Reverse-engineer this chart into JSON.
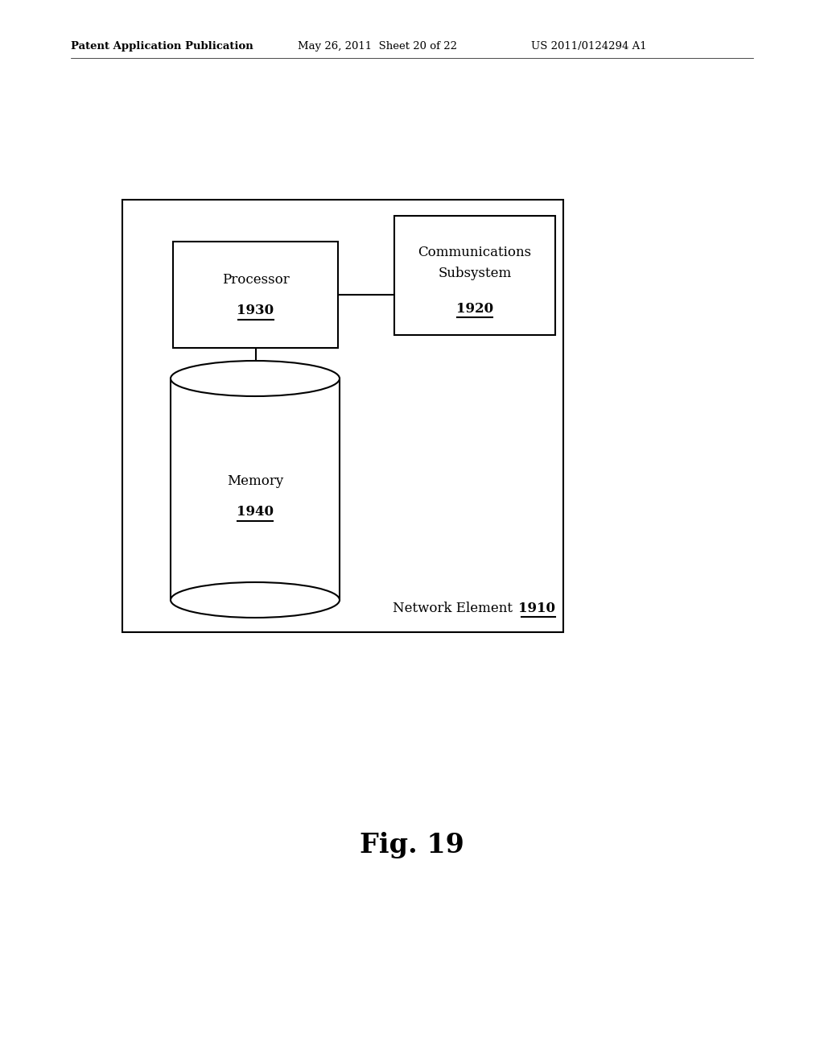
{
  "bg_color": "#ffffff",
  "header_text": "Patent Application Publication",
  "header_date": "May 26, 2011  Sheet 20 of 22",
  "header_patent": "US 2011/0124294 A1",
  "fig_caption": "Fig. 19",
  "text_color": "#000000",
  "fontsize_header": 9.5,
  "fontsize_labels": 12,
  "fontsize_nums": 12,
  "fontsize_caption": 24,
  "fontsize_network": 12
}
